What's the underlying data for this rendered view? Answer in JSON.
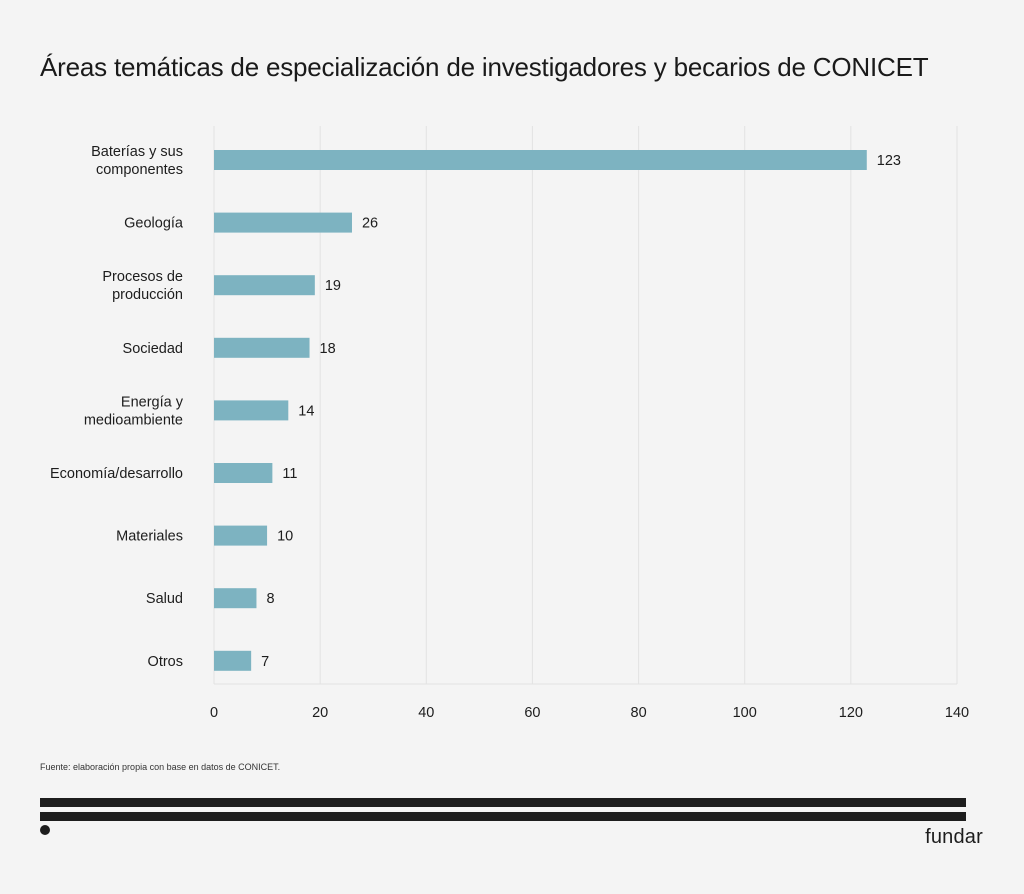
{
  "chart_data": {
    "type": "bar",
    "orientation": "horizontal",
    "title": "Áreas temáticas de especialización de investigadores y becarios de CONICET",
    "categories": [
      [
        "Baterías y sus",
        "componentes"
      ],
      [
        "Geología"
      ],
      [
        "Procesos de",
        "producción"
      ],
      [
        "Sociedad"
      ],
      [
        "Energía y",
        "medioambiente"
      ],
      [
        "Economía/desarrollo"
      ],
      [
        "Materiales"
      ],
      [
        "Salud"
      ],
      [
        "Otros"
      ]
    ],
    "values": [
      123,
      26,
      19,
      18,
      14,
      11,
      10,
      8,
      7
    ],
    "xlim": [
      0,
      140
    ],
    "xticks": [
      0,
      20,
      40,
      60,
      80,
      100,
      120,
      140
    ],
    "xlabel": "",
    "ylabel": "",
    "grid": true,
    "bar_color": "#7db3c1",
    "grid_color": "#e2e2e2"
  },
  "source": "Fuente: elaboración propia con base en datos de CONICET.",
  "brand": "fundar"
}
